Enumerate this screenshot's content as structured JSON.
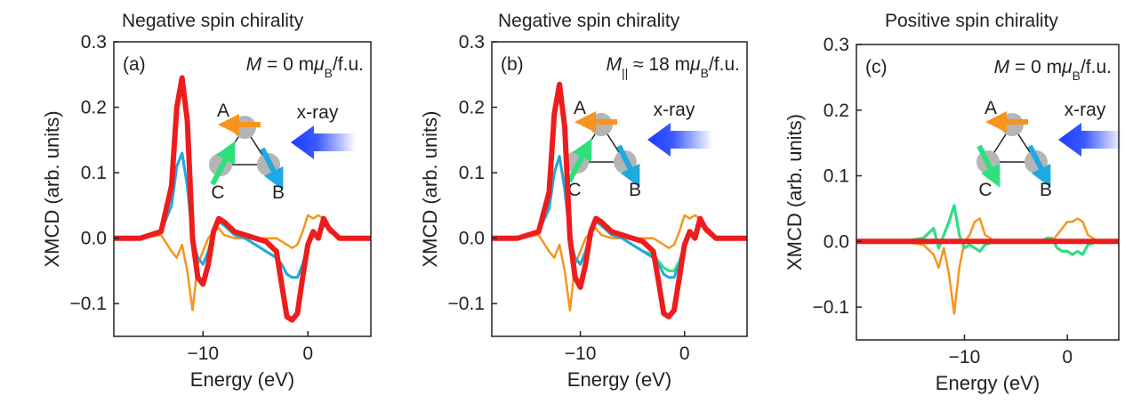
{
  "chart_data": [
    {
      "type": "line",
      "title": "Negative spin chirality",
      "panel": "(a)",
      "annotation": [
        {
          "t": "M",
          "style": "italic"
        },
        {
          "t": " = 0 m",
          "style": "normal"
        },
        {
          "t": "μ",
          "style": "italic"
        },
        {
          "t": "B",
          "style": "sub"
        },
        {
          "t": "/f.u.",
          "style": "normal"
        }
      ],
      "inset_labels": [
        "A",
        "B",
        "C",
        "x-ray"
      ],
      "x_label": "Energy (eV)",
      "y_label": "XMCD (arb. units)",
      "x": [
        -18.5,
        -16,
        -14,
        -13,
        -12.5,
        -12,
        -11.5,
        -11,
        -10.5,
        -10,
        -9.5,
        -9,
        -8.5,
        -8,
        -7,
        -6,
        -5,
        -4,
        -3,
        -2.5,
        -2,
        -1.5,
        -1,
        -0.5,
        0,
        0.5,
        1,
        1.5,
        2,
        3,
        4,
        6
      ],
      "series": [
        {
          "color": "#f7941d",
          "values": [
            0,
            0,
            0.005,
            -0.02,
            -0.03,
            -0.01,
            -0.05,
            -0.11,
            -0.04,
            -0.02,
            0,
            0.01,
            0.015,
            0.005,
            0,
            0,
            0,
            0,
            0,
            -0.005,
            -0.01,
            -0.015,
            -0.01,
            0.01,
            0.035,
            0.03,
            0.035,
            0.03,
            0.01,
            0,
            0,
            0
          ]
        },
        {
          "color": "#2ee07c",
          "values": [
            0,
            0,
            0.01,
            0.05,
            0.11,
            0.13,
            0.08,
            0,
            -0.03,
            -0.04,
            -0.02,
            0.01,
            0.025,
            0.02,
            0.005,
            0,
            -0.01,
            -0.02,
            -0.03,
            -0.04,
            -0.055,
            -0.06,
            -0.06,
            -0.04,
            -0.01,
            0.01,
            0.005,
            0.02,
            0.015,
            0,
            0,
            0
          ]
        },
        {
          "color": "#1fa9e1",
          "values": [
            0,
            0,
            0.01,
            0.05,
            0.11,
            0.13,
            0.08,
            0,
            -0.03,
            -0.04,
            -0.02,
            0.01,
            0.025,
            0.02,
            0.005,
            0,
            -0.01,
            -0.02,
            -0.03,
            -0.04,
            -0.055,
            -0.06,
            -0.06,
            -0.04,
            -0.01,
            0.01,
            0.005,
            0.02,
            0.015,
            0,
            0,
            0
          ]
        },
        {
          "color": "#ee1c1c",
          "values": [
            0,
            0,
            0.01,
            0.08,
            0.2,
            0.245,
            0.18,
            0,
            -0.06,
            -0.07,
            -0.04,
            0.01,
            0.03,
            0.025,
            0.01,
            0.005,
            0,
            -0.005,
            -0.02,
            -0.07,
            -0.12,
            -0.125,
            -0.115,
            -0.06,
            -0.01,
            0.01,
            0,
            0.03,
            0.015,
            0,
            0,
            0
          ]
        }
      ],
      "xlim": [
        -18.5,
        6
      ],
      "ylim": [
        -0.15,
        0.3
      ],
      "xticks": [
        {
          "value": -10,
          "label": "−10"
        },
        0
      ],
      "yticks": [
        {
          "value": -0.1,
          "label": "−0.1"
        },
        {
          "value": 0,
          "label": "0.0"
        },
        0.1,
        0.2,
        0.3
      ]
    },
    {
      "type": "line",
      "title": "Negative spin chirality",
      "panel": "(b)",
      "annotation": [
        {
          "t": "M",
          "style": "italic"
        },
        {
          "t": "||",
          "style": "sub"
        },
        {
          "t": " ≈ 18 m",
          "style": "normal"
        },
        {
          "t": "μ",
          "style": "italic"
        },
        {
          "t": "B",
          "style": "sub"
        },
        {
          "t": "/f.u.",
          "style": "normal"
        }
      ],
      "inset_labels": [
        "A",
        "B",
        "C",
        "x-ray"
      ],
      "x_label": "Energy (eV)",
      "y_label": "XMCD (arb. units)",
      "x": [
        -18.5,
        -16,
        -14,
        -13,
        -12.5,
        -12,
        -11.5,
        -11,
        -10.5,
        -10,
        -9.5,
        -9,
        -8.5,
        -8,
        -7,
        -6,
        -5,
        -4,
        -3,
        -2.5,
        -2,
        -1.5,
        -1,
        -0.5,
        0,
        0.5,
        1,
        1.5,
        2,
        3,
        4,
        6
      ],
      "series": [
        {
          "color": "#f7941d",
          "values": [
            0,
            0,
            0.005,
            -0.02,
            -0.03,
            -0.01,
            -0.05,
            -0.11,
            -0.04,
            -0.02,
            0,
            0.01,
            0.015,
            0.005,
            0,
            0,
            0,
            0,
            0,
            -0.005,
            -0.01,
            -0.015,
            -0.01,
            0.01,
            0.035,
            0.03,
            0.035,
            0.03,
            0.01,
            0,
            0,
            0
          ]
        },
        {
          "color": "#2ee07c",
          "values": [
            0,
            0,
            0.01,
            0.045,
            0.1,
            0.125,
            0.075,
            0,
            -0.03,
            -0.04,
            -0.02,
            0.01,
            0.025,
            0.02,
            0.005,
            0,
            -0.01,
            -0.02,
            -0.025,
            -0.035,
            -0.045,
            -0.05,
            -0.05,
            -0.035,
            -0.01,
            0.01,
            0.005,
            0.02,
            0.015,
            0,
            0,
            0
          ]
        },
        {
          "color": "#1fa9e1",
          "values": [
            0,
            0,
            0.01,
            0.045,
            0.1,
            0.125,
            0.075,
            0,
            -0.03,
            -0.04,
            -0.02,
            0.01,
            0.025,
            0.02,
            0.005,
            0,
            -0.01,
            -0.02,
            -0.03,
            -0.04,
            -0.055,
            -0.06,
            -0.06,
            -0.04,
            -0.01,
            0.01,
            0.005,
            0.02,
            0.015,
            0,
            0,
            0
          ]
        },
        {
          "color": "#ee1c1c",
          "values": [
            0,
            0,
            0.01,
            0.07,
            0.19,
            0.235,
            0.17,
            0,
            -0.06,
            -0.075,
            -0.04,
            0.01,
            0.03,
            0.025,
            0.01,
            0.005,
            0,
            -0.005,
            -0.02,
            -0.065,
            -0.115,
            -0.12,
            -0.11,
            -0.06,
            -0.01,
            0.01,
            0,
            0.03,
            0.015,
            0,
            0,
            0
          ]
        }
      ],
      "xlim": [
        -18.5,
        6
      ],
      "ylim": [
        -0.15,
        0.3
      ],
      "xticks": [
        {
          "value": -10,
          "label": "−10"
        },
        0
      ],
      "yticks": [
        {
          "value": -0.1,
          "label": "−0.1"
        },
        {
          "value": 0,
          "label": "0.0"
        },
        0.1,
        0.2,
        0.3
      ]
    },
    {
      "type": "line",
      "title": "Positive spin chirality",
      "panel": "(c)",
      "annotation": [
        {
          "t": "M",
          "style": "italic"
        },
        {
          "t": " = 0 m",
          "style": "normal"
        },
        {
          "t": "μ",
          "style": "italic"
        },
        {
          "t": "B",
          "style": "sub"
        },
        {
          "t": "/f.u.",
          "style": "normal"
        }
      ],
      "inset_labels": [
        "A",
        "B",
        "C",
        "x-ray"
      ],
      "x_label": "Energy (eV)",
      "y_label": "XMCD (arb. units)",
      "x": [
        -20.5,
        -16,
        -14,
        -13,
        -12.5,
        -12,
        -11.5,
        -11,
        -10.5,
        -10,
        -9.5,
        -9,
        -8.5,
        -8,
        -7,
        -6,
        -5,
        -4,
        -3,
        -2.5,
        -2,
        -1.5,
        -1,
        -0.5,
        0,
        0.5,
        1,
        1.5,
        2,
        3,
        4,
        5
      ],
      "series": [
        {
          "color": "#f7941d",
          "values": [
            0,
            0,
            -0.005,
            -0.02,
            -0.04,
            -0.01,
            -0.05,
            -0.11,
            -0.04,
            0,
            0.01,
            0.03,
            0.035,
            0.01,
            0,
            0,
            0,
            0,
            0,
            0,
            0,
            0,
            0.01,
            0.02,
            0.03,
            0.03,
            0.035,
            0.03,
            0.01,
            0,
            0,
            0
          ]
        },
        {
          "color": "#1fa9e1",
          "values": [
            0,
            0,
            0.005,
            0.02,
            -0.01,
            0.01,
            0.03,
            0.055,
            0.01,
            -0.01,
            -0.005,
            -0.01,
            -0.015,
            -0.005,
            0,
            0,
            0,
            0,
            0,
            0,
            0.005,
            0.005,
            -0.01,
            -0.015,
            -0.015,
            -0.02,
            -0.015,
            -0.02,
            -0.005,
            0,
            0,
            0
          ]
        },
        {
          "color": "#2ee07c",
          "values": [
            0,
            0,
            0.005,
            0.02,
            -0.01,
            0.01,
            0.03,
            0.055,
            0.01,
            -0.01,
            -0.005,
            -0.01,
            -0.015,
            -0.005,
            0,
            0,
            0,
            0,
            0,
            0,
            0.005,
            0.005,
            -0.01,
            -0.015,
            -0.015,
            -0.02,
            -0.015,
            -0.02,
            -0.005,
            0,
            0,
            0
          ]
        },
        {
          "color": "#ee1c1c",
          "values": [
            0,
            0,
            0,
            0,
            0,
            0,
            0,
            0,
            0,
            0,
            0,
            0,
            0,
            0,
            0,
            0,
            0,
            0,
            0,
            0,
            0,
            0,
            0,
            0,
            0,
            0,
            0,
            0,
            0,
            0,
            0,
            0
          ]
        }
      ],
      "xlim": [
        -20.5,
        5
      ],
      "ylim": [
        -0.15,
        0.3
      ],
      "xticks": [
        {
          "value": -10,
          "label": "−10"
        },
        0
      ],
      "yticks": [
        {
          "value": -0.1,
          "label": "−0.1"
        },
        {
          "value": 0,
          "label": "0.0"
        },
        0.1,
        0.2,
        0.3
      ]
    }
  ]
}
